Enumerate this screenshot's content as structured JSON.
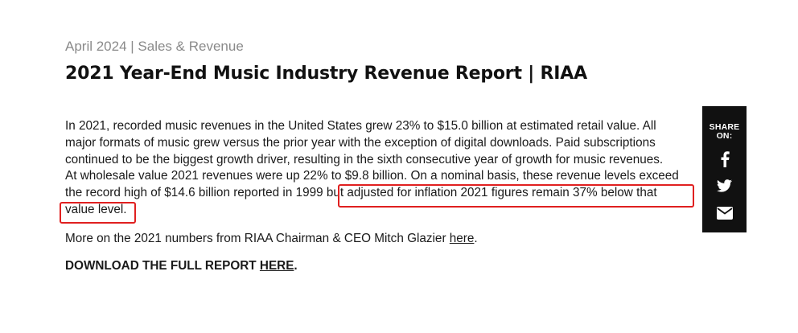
{
  "article": {
    "meta": "April 2024 | Sales & Revenue",
    "title": "2021 Year-End Music Industry Revenue Report | RIAA",
    "paragraph1_lines": [
      "In 2021, recorded music revenues in the United States grew 23% to $15.0 billion at estimated retail value. All",
      "major formats of music grew versus the prior year with the exception of digital downloads. Paid subscriptions",
      "continued to be the biggest growth driver, resulting in the sixth consecutive year of growth for music revenues.",
      "At wholesale value 2021 revenues were up 22% to $9.8 billion. On a nominal basis, these revenue levels exceed",
      "the record high of $14.6 billion reported in 1999",
      " but adjusted for inflation 2021 figures remain 37% below that",
      "value level."
    ],
    "paragraph2_text": "More on the 2021 numbers from RIAA Chairman & CEO Mitch Glazier ",
    "paragraph2_link": "here",
    "paragraph2_end": ".",
    "paragraph3_text": "DOWNLOAD THE FULL REPORT ",
    "paragraph3_link": "HERE",
    "paragraph3_end": "."
  },
  "share": {
    "label_line1": "SHARE",
    "label_line2": "ON:",
    "buttons": [
      "facebook-icon",
      "twitter-icon",
      "email-icon"
    ]
  },
  "colors": {
    "highlight": "#e02020",
    "share_bg": "#111111",
    "meta_text": "#8a8a8a"
  }
}
